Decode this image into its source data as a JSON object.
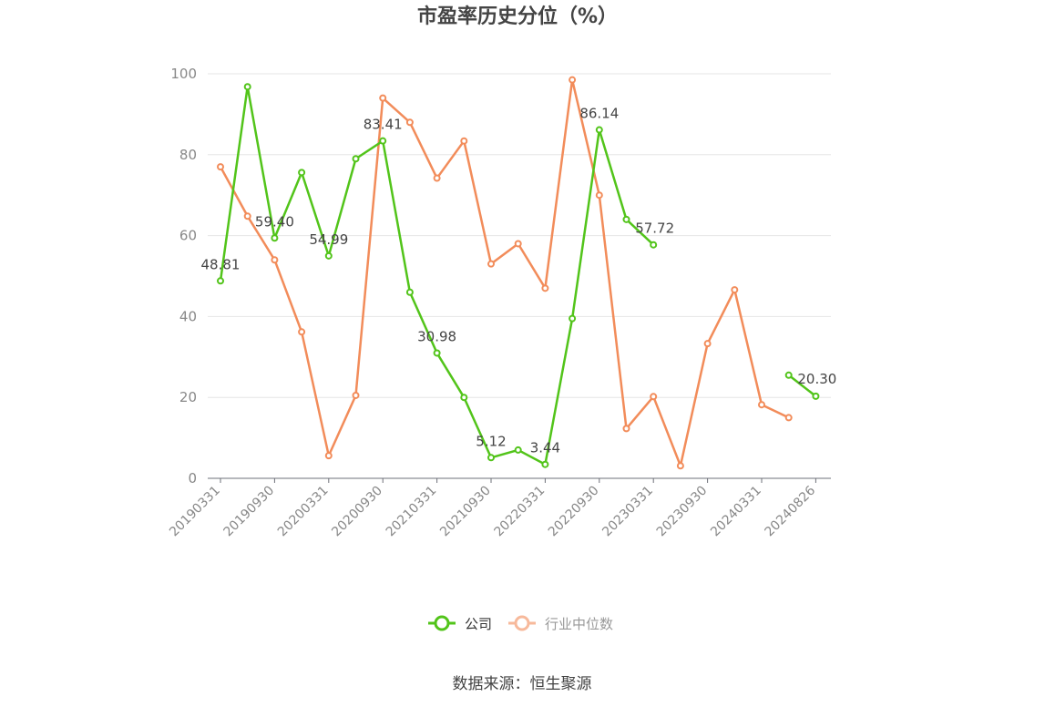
{
  "chart_data": {
    "type": "line",
    "title": "市盈率历史分位（%）",
    "ylim": [
      0,
      100
    ],
    "yticks": [
      0,
      20,
      40,
      60,
      80,
      100
    ],
    "grid": true,
    "legend_position": "bottom-center",
    "x_tick_labels": [
      "20190331",
      "20190930",
      "20200331",
      "20200930",
      "20210331",
      "20210930",
      "20220331",
      "20220930",
      "20230331",
      "20230930",
      "20240331",
      "20240826"
    ],
    "x": [
      "20190331",
      "20190630",
      "20190930",
      "20191231",
      "20200331",
      "20200630",
      "20200930",
      "20201231",
      "20210331",
      "20210630",
      "20210930",
      "20211231",
      "20220331",
      "20220630",
      "20220930",
      "20221231",
      "20230331",
      "20230630",
      "20230930",
      "20231231",
      "20240331",
      "20240630",
      "20240826"
    ],
    "series": [
      {
        "name": "公司",
        "color": "#52c41a",
        "values": [
          48.81,
          96.8,
          59.4,
          75.6,
          54.99,
          79.0,
          83.41,
          46.0,
          30.98,
          20.0,
          5.12,
          7.0,
          3.44,
          39.5,
          86.14,
          64.0,
          57.72,
          null,
          null,
          null,
          null,
          25.5,
          20.3
        ],
        "labels": [
          "48.81",
          null,
          "59.40",
          null,
          "54.99",
          null,
          "83.41",
          null,
          "30.98",
          null,
          "5.12",
          null,
          "3.44",
          null,
          "86.14",
          null,
          "57.72",
          null,
          null,
          null,
          null,
          null,
          "20.30"
        ]
      },
      {
        "name": "行业中位数",
        "color": "#f28c5a",
        "values": [
          77.0,
          64.8,
          54.0,
          36.2,
          5.6,
          20.5,
          94.0,
          88.0,
          74.2,
          83.4,
          53.0,
          58.0,
          47.0,
          98.5,
          70.0,
          12.3,
          20.2,
          3.1,
          33.3,
          46.6,
          18.2,
          15.0,
          null
        ]
      }
    ]
  },
  "source": "数据来源：恒生聚源"
}
